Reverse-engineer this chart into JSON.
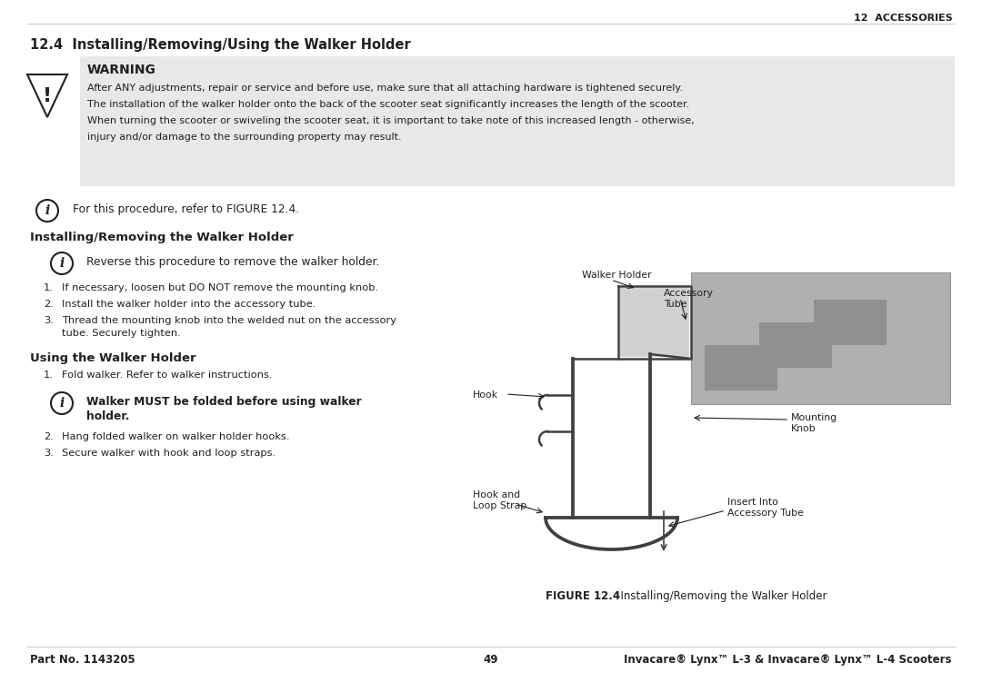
{
  "page_width": 10.8,
  "page_height": 7.62,
  "bg_color": "#ffffff",
  "header_text": "12  ACCESSORIES",
  "section_title": "12.4  Installing/Removing/Using the Walker Holder",
  "warning_title": "WARNING",
  "warning_bg": "#e8e8e8",
  "warning_lines": [
    "After ANY adjustments, repair or service and before use, make sure that all attaching hardware is tightened securely.",
    "The installation of the walker holder onto the back of the scooter seat significantly increases the length of the scooter.",
    "When turning the scooter or swiveling the scooter seat, it is important to take note of this increased length - otherwise,",
    "injury and/or damage to the surrounding property may result."
  ],
  "info_line": "For this procedure, refer to FIGURE 12.4.",
  "subsection1_title": "Installing/Removing the Walker Holder",
  "info_line2": "Reverse this procedure to remove the walker holder.",
  "install_steps": [
    "If necessary, loosen but DO NOT remove the mounting knob.",
    "Install the walker holder into the accessory tube.",
    "Thread the mounting knob into the welded nut on the accessory\ntube. Securely tighten."
  ],
  "subsection2_title": "Using the Walker Holder",
  "use_step1": "Fold walker. Refer to walker instructions.",
  "info_line3_line1": "Walker MUST be folded before using walker",
  "info_line3_line2": "holder.",
  "use_steps2": [
    "Hang folded walker on walker holder hooks.",
    "Secure walker with hook and loop straps."
  ],
  "figure_caption_bold": "FIGURE 12.4",
  "figure_caption_rest": "  Installing/Removing the Walker Holder",
  "footer_left": "Part No. 1143205",
  "footer_center": "49",
  "footer_right": "Invacare® Lynx™ L-3 & Invacare® Lynx™ L-4 Scooters",
  "text_color": "#231f20",
  "gray_text": "#6d6e71",
  "line_color": "#bcbec0"
}
